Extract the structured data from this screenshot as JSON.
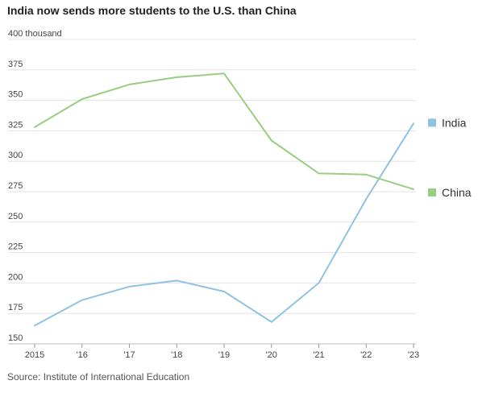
{
  "chart_data": {
    "type": "line",
    "title": "India now sends more students to the U.S. than China",
    "ylabel_unit": "400 thousand",
    "x": [
      "2015",
      "'16",
      "'17",
      "'18",
      "'19",
      "'20",
      "'21",
      "'22",
      "'23"
    ],
    "ylim": [
      150,
      400
    ],
    "yticks": [
      150,
      175,
      200,
      225,
      250,
      275,
      300,
      325,
      350,
      375,
      400
    ],
    "ytick_labels": [
      "150",
      "175",
      "200",
      "225",
      "250",
      "275",
      "300",
      "325",
      "350",
      "375",
      "400 thousand"
    ],
    "grid": true,
    "legend_position": "right",
    "series": [
      {
        "name": "India",
        "color": "#8ec3e6",
        "values": [
          165,
          186,
          197,
          202,
          193,
          168,
          200,
          269,
          331
        ]
      },
      {
        "name": "China",
        "color": "#97cf7f",
        "values": [
          328,
          351,
          363,
          369,
          372,
          317,
          290,
          289,
          277
        ]
      }
    ],
    "source": "Source: Institute of International Education"
  }
}
